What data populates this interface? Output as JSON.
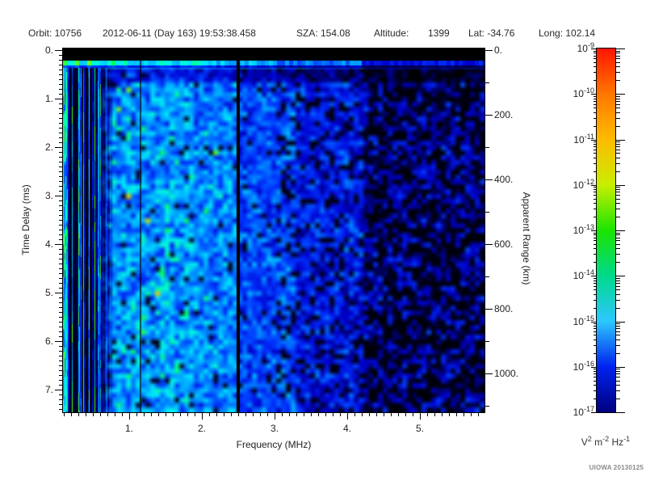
{
  "header": {
    "orbit": "Orbit: 10756",
    "datetime": "2012-06-11 (Day 163) 19:53:38.458",
    "sza": "SZA: 154.08",
    "altitude_label": "Altitude:",
    "altitude_value": "1399",
    "lat": "Lat: -34.76",
    "long": "Long: 102.14"
  },
  "axes": {
    "left_title": "Time Delay (ms)",
    "bottom_title": "Frequency (MHz)",
    "right_title": "Apparent Range (km)",
    "left_tick_labels": [
      "0.",
      "1.",
      "2.",
      "3.",
      "4.",
      "5.",
      "6.",
      "7."
    ],
    "bottom_tick_labels": [
      "1.",
      "2.",
      "3.",
      "4.",
      "5."
    ],
    "right_tick_labels": [
      "0.",
      "200.",
      "400.",
      "600.",
      "800.",
      "1000."
    ]
  },
  "colorbar": {
    "tick_exponents": [
      "-9",
      "-10",
      "-11",
      "-12",
      "-13",
      "-14",
      "-15",
      "-16",
      "-17"
    ],
    "units_parts": [
      {
        "base": "V",
        "sup": "2"
      },
      {
        "base": "m",
        "sup": "-2"
      },
      {
        "base": "Hz",
        "sup": "-1"
      }
    ],
    "gradient_stops": [
      {
        "pct": 0,
        "color": "#ff1500"
      },
      {
        "pct": 12.5,
        "color": "#ff7700"
      },
      {
        "pct": 25,
        "color": "#ffbb00"
      },
      {
        "pct": 37.5,
        "color": "#c8ee00"
      },
      {
        "pct": 50,
        "color": "#1ae400"
      },
      {
        "pct": 62.5,
        "color": "#00d98c"
      },
      {
        "pct": 75,
        "color": "#2cc8ff"
      },
      {
        "pct": 87.5,
        "color": "#0022ee"
      },
      {
        "pct": 100,
        "color": "#000080"
      }
    ]
  },
  "footer": {
    "credit": "UIOWA 20130125"
  },
  "colors": {
    "page_bg": "#ffffff",
    "text": "#222222",
    "credit_text": "#8a8a8a",
    "no_signal": "#000000"
  },
  "chart_data": {
    "type": "heatmap",
    "xlabel": "Frequency (MHz)",
    "ylabel": "Time Delay (ms)",
    "y2label": "Apparent Range (km)",
    "zlabel": "V^2 m^-2 Hz^-1",
    "x_range_mhz": [
      0.09,
      5.89
    ],
    "x_ticks_mhz": [
      1,
      2,
      3,
      4,
      5
    ],
    "x_minor_step_mhz": 0.1,
    "y_range_ms": [
      0,
      7.47
    ],
    "y_ticks_ms": [
      0,
      1,
      2,
      3,
      4,
      5,
      6,
      7
    ],
    "y_minor_step_ms": 0.1,
    "y2_ticks_km": [
      0,
      200,
      400,
      600,
      800,
      1000
    ],
    "y2_minor_step_km": 100,
    "z_range": [
      "1e-17",
      "1e-9"
    ],
    "colorscale": "rainbow: red=1e-9 high, navy=1e-17 low, black=no signal",
    "legend_position": "right colorbar",
    "grid": false,
    "features": {
      "seed": 1337,
      "no_signal_band_ms": [
        0,
        0.25
      ],
      "surface_echo_ms": [
        0.25,
        0.4
      ],
      "surface_echo_peak_exp": -13.5,
      "interference_notches_mhz": [
        2.5,
        1.17
      ],
      "striped_low_freq_region_mhz": [
        0.09,
        0.75
      ],
      "bright_diffuse_region_mhz": [
        0.55,
        2.5
      ],
      "medium_region_mhz": [
        2.5,
        4.2
      ],
      "faint_region_mhz": [
        4.2,
        5.89
      ],
      "typical_power_exp_bright": -15,
      "typical_power_exp_faint": -16.5
    },
    "colormap_stops": [
      [
        0.0,
        "#000000"
      ],
      [
        0.06,
        "#000022"
      ],
      [
        0.12,
        "#000066"
      ],
      [
        0.2,
        "#0000cc"
      ],
      [
        0.3,
        "#0033ff"
      ],
      [
        0.4,
        "#0077ff"
      ],
      [
        0.5,
        "#00b4ff"
      ],
      [
        0.6,
        "#00e4ff"
      ],
      [
        0.68,
        "#00ffcc"
      ],
      [
        0.76,
        "#00ff55"
      ],
      [
        0.84,
        "#99ff00"
      ],
      [
        0.92,
        "#ffbb00"
      ],
      [
        1.0,
        "#ff2200"
      ]
    ]
  }
}
